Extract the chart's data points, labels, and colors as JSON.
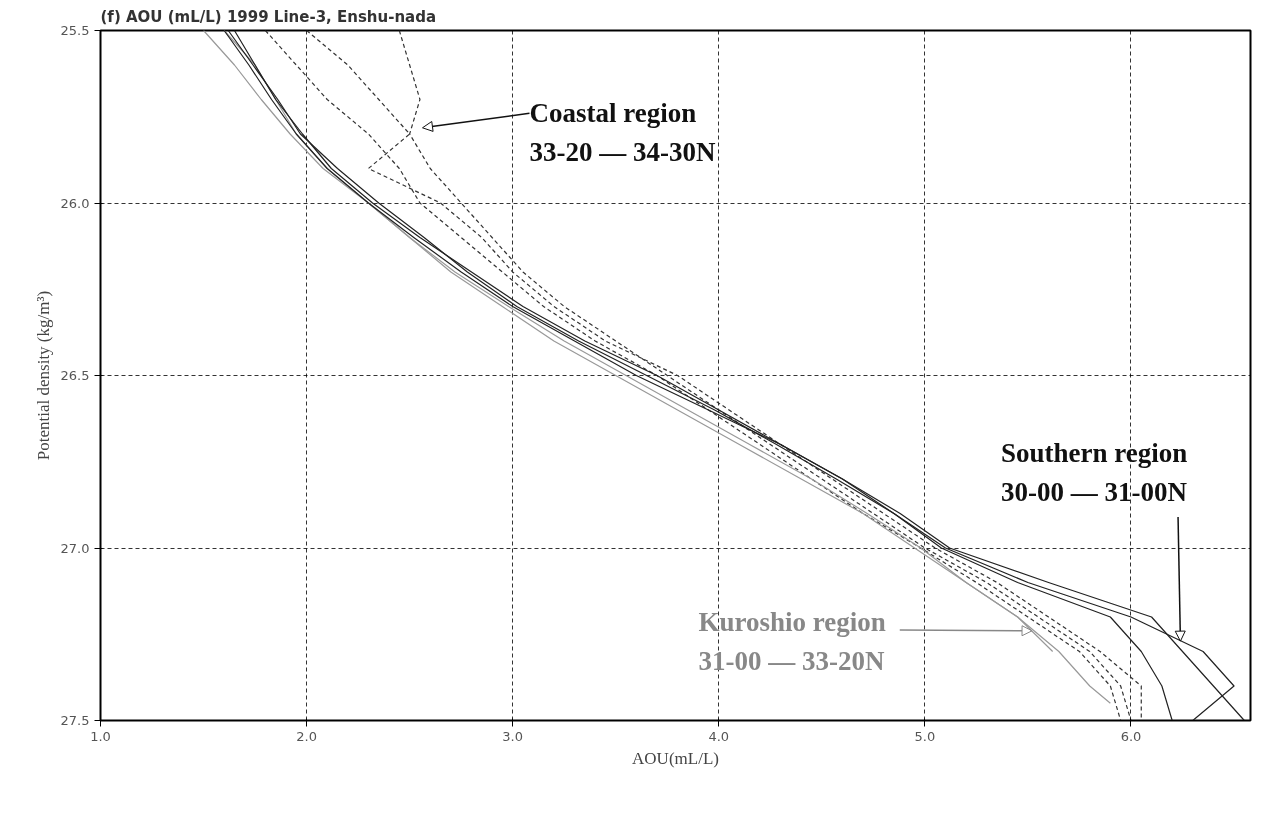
{
  "chart_data": {
    "type": "line",
    "title": "(f) AOU (mL/L) 1999 Line-3, Enshu-nada",
    "xlabel": "AOU(mL/L)",
    "ylabel": "Potential density (kg/m³)",
    "xlim": [
      1.0,
      6.58
    ],
    "ylim": [
      27.5,
      25.5
    ],
    "xticks": [
      {
        "value": 1,
        "label": "1.0"
      },
      {
        "value": 2,
        "label": "2.0"
      },
      {
        "value": 3,
        "label": "3.0"
      },
      {
        "value": 4,
        "label": "4.0"
      },
      {
        "value": 5,
        "label": "5.0"
      },
      {
        "value": 6,
        "label": "6.0"
      }
    ],
    "yticks": [
      25.5,
      {
        "value": 26,
        "label": "26.0"
      },
      26.5,
      {
        "value": 27,
        "label": "27.0"
      },
      27.5
    ],
    "grid": true,
    "series": [
      {
        "color": "#333333",
        "line_style": "dashed",
        "x": [
          2.45,
          2.5,
          2.55,
          2.5,
          2.6,
          2.75,
          2.9,
          3.05,
          3.25,
          3.5,
          3.75,
          4.0,
          4.25,
          4.5,
          4.75,
          5.0,
          5.3,
          5.55,
          5.8,
          5.95,
          6.0
        ],
        "values": [
          25.5,
          25.6,
          25.7,
          25.8,
          25.9,
          26.0,
          26.1,
          26.2,
          26.3,
          26.4,
          26.5,
          26.6,
          26.7,
          26.8,
          26.9,
          27.0,
          27.1,
          27.2,
          27.3,
          27.4,
          27.5
        ]
      },
      {
        "color": "#333333",
        "line_style": "dashed",
        "x": [
          1.8,
          1.95,
          2.1,
          2.3,
          2.45,
          2.55,
          2.75,
          2.95,
          3.15,
          3.4,
          3.7,
          3.95,
          4.2,
          4.45,
          4.7,
          4.98,
          5.25,
          5.5,
          5.75,
          5.9,
          5.95
        ],
        "values": [
          25.5,
          25.6,
          25.7,
          25.8,
          25.9,
          26.0,
          26.1,
          26.2,
          26.3,
          26.4,
          26.5,
          26.6,
          26.7,
          26.8,
          26.9,
          27.0,
          27.1,
          27.2,
          27.3,
          27.4,
          27.5
        ]
      },
      {
        "color": "#333333",
        "line_style": "dashed",
        "x": [
          2.0,
          2.2,
          2.35,
          2.5,
          2.3,
          2.65,
          2.85,
          3.0,
          3.2,
          3.45,
          3.8,
          4.05,
          4.3,
          4.55,
          4.8,
          5.05,
          5.35,
          5.6,
          5.85,
          6.05,
          6.05
        ],
        "values": [
          25.5,
          25.6,
          25.7,
          25.8,
          25.9,
          26.0,
          26.1,
          26.2,
          26.3,
          26.4,
          26.5,
          26.6,
          26.7,
          26.8,
          26.9,
          27.0,
          27.1,
          27.2,
          27.3,
          27.4,
          27.5
        ]
      },
      {
        "color": "#999999",
        "line_style": "solid",
        "x": [
          1.6,
          1.75,
          1.85,
          1.95,
          2.1,
          2.3,
          2.5,
          2.7,
          2.95,
          3.2,
          3.5,
          3.8,
          4.1,
          4.4,
          4.7,
          4.95,
          5.2,
          5.45,
          5.65,
          5.8,
          5.9
        ],
        "values": [
          25.5,
          25.6,
          25.7,
          25.8,
          25.9,
          26.0,
          26.1,
          26.2,
          26.3,
          26.4,
          26.5,
          26.6,
          26.7,
          26.8,
          26.9,
          27.0,
          27.1,
          27.2,
          27.3,
          27.4,
          27.45
        ]
      },
      {
        "color": "#999999",
        "line_style": "solid",
        "x": [
          1.5,
          1.65,
          1.78,
          1.92,
          2.08,
          2.3,
          2.5,
          2.72,
          2.98,
          3.25,
          3.55,
          3.85,
          4.15,
          4.45,
          4.72,
          4.98,
          5.2,
          5.45,
          5.62
        ],
        "values": [
          25.5,
          25.6,
          25.7,
          25.8,
          25.9,
          26.0,
          26.1,
          26.2,
          26.3,
          26.4,
          26.5,
          26.6,
          26.7,
          26.8,
          26.9,
          27.0,
          27.1,
          27.2,
          27.3
        ]
      },
      {
        "color": "#222222",
        "line_style": "solid",
        "x": [
          1.6,
          1.72,
          1.83,
          1.95,
          2.1,
          2.3,
          2.52,
          2.75,
          3.0,
          3.3,
          3.6,
          3.95,
          4.3,
          4.6,
          4.85,
          5.1,
          5.5,
          6.0,
          6.35,
          6.5,
          6.3
        ],
        "values": [
          25.5,
          25.6,
          25.7,
          25.8,
          25.9,
          26.0,
          26.1,
          26.2,
          26.3,
          26.4,
          26.5,
          26.6,
          26.7,
          26.8,
          26.9,
          27.0,
          27.1,
          27.2,
          27.3,
          27.4,
          27.5
        ]
      },
      {
        "color": "#222222",
        "line_style": "solid",
        "x": [
          1.65,
          1.75,
          1.85,
          1.98,
          2.12,
          2.32,
          2.55,
          2.8,
          3.05,
          3.35,
          3.7,
          4.0,
          4.3,
          4.6,
          4.88,
          5.12,
          5.6,
          6.1,
          6.25,
          6.4,
          6.55
        ],
        "values": [
          25.5,
          25.6,
          25.7,
          25.8,
          25.9,
          26.0,
          26.1,
          26.2,
          26.3,
          26.4,
          26.5,
          26.6,
          26.7,
          26.8,
          26.9,
          27.0,
          27.1,
          27.2,
          27.3,
          27.4,
          27.5
        ]
      },
      {
        "color": "#222222",
        "line_style": "solid",
        "x": [
          1.62,
          1.74,
          1.86,
          1.97,
          2.15,
          2.35,
          2.57,
          2.78,
          3.02,
          3.32,
          3.65,
          3.98,
          4.28,
          4.57,
          4.85,
          5.08,
          5.45,
          5.9,
          6.05,
          6.15,
          6.2
        ],
        "values": [
          25.5,
          25.6,
          25.7,
          25.8,
          25.9,
          26.0,
          26.1,
          26.2,
          26.3,
          26.4,
          26.5,
          26.6,
          26.7,
          26.8,
          26.9,
          27.0,
          27.1,
          27.2,
          27.3,
          27.4,
          27.5
        ]
      }
    ],
    "annotations": [
      "Coastal region\n33-20 — 34-30N",
      {
        "text": "Kuroshio region\n31-00 — 33-20N",
        "x": 5.52,
        "y": 27.24
      },
      {
        "text": "Southern region\n30-00 — 31-00N",
        "x": 6.24,
        "y": 27.27
      }
    ]
  }
}
